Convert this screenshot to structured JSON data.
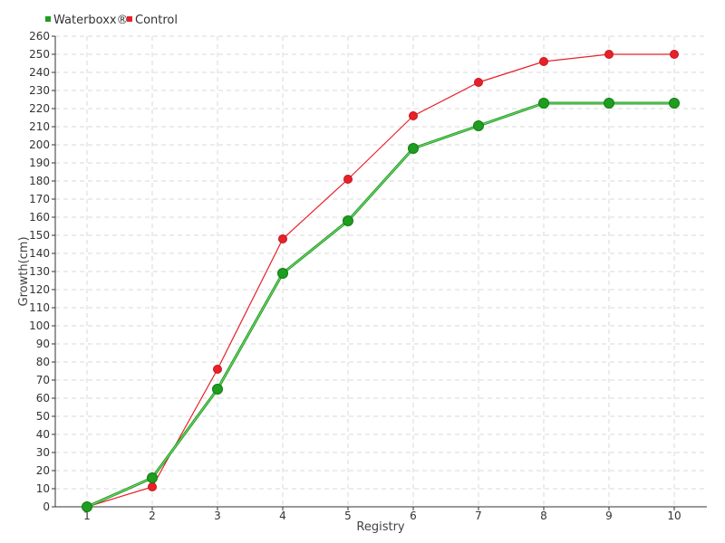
{
  "chart_data": {
    "type": "line",
    "title": "",
    "xlabel": "Registry",
    "ylabel": "Growth(cm)",
    "x": [
      1,
      2,
      3,
      4,
      5,
      6,
      7,
      8,
      9,
      10
    ],
    "ylim": [
      0,
      260
    ],
    "ytick_step": 10,
    "grid": true,
    "legend_position": "top-left",
    "series": [
      {
        "name": "Waterboxx®",
        "color": "#1e9e1e",
        "values": [
          0,
          16,
          65,
          129,
          158,
          198,
          210.5,
          223,
          223,
          223
        ]
      },
      {
        "name": "Control",
        "color": "#e8202a",
        "values": [
          0,
          11,
          76,
          148,
          181,
          216,
          234.5,
          246,
          250,
          250
        ]
      }
    ]
  }
}
